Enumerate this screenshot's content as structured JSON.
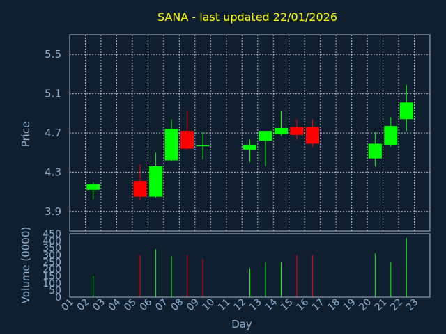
{
  "colors": {
    "background": "#0f1f30",
    "up": "#00ff00",
    "down": "#ff0000",
    "title": "#ffff00",
    "text": "#8fb0d0"
  },
  "chart_data": {
    "type": "candlestick",
    "title": "SANA - last updated 22/01/2026",
    "xlabel": "Day",
    "price_ylabel": "Price",
    "volume_ylabel": "Volume (0000)",
    "grid": true,
    "categories": [
      "01",
      "02",
      "03",
      "04",
      "05",
      "06",
      "07",
      "08",
      "09",
      "10",
      "11",
      "12",
      "13",
      "14",
      "15",
      "16",
      "17",
      "18",
      "19",
      "20",
      "21",
      "22",
      "23"
    ],
    "price_ylim": [
      3.7,
      5.7
    ],
    "price_ticks": [
      "3.9",
      "4.3",
      "4.7",
      "5.1",
      "5.5"
    ],
    "volume_ylim": [
      0,
      450
    ],
    "volume_ticks": [
      "0",
      "50",
      "100",
      "150",
      "200",
      "250",
      "300",
      "350",
      "400",
      "450"
    ],
    "candles": [
      {
        "day": "02",
        "open": 4.12,
        "high": 4.2,
        "low": 4.02,
        "close": 4.18
      },
      {
        "day": "05",
        "open": 4.21,
        "high": 4.38,
        "low": 4.01,
        "close": 4.05
      },
      {
        "day": "06",
        "open": 4.05,
        "high": 4.5,
        "low": 4.04,
        "close": 4.36
      },
      {
        "day": "07",
        "open": 4.42,
        "high": 4.84,
        "low": 4.41,
        "close": 4.74
      },
      {
        "day": "08",
        "open": 4.72,
        "high": 4.92,
        "low": 4.53,
        "close": 4.54
      },
      {
        "day": "09",
        "open": 4.57,
        "high": 4.71,
        "low": 4.43,
        "close": 4.57
      },
      {
        "day": "12",
        "open": 4.53,
        "high": 4.63,
        "low": 4.4,
        "close": 4.58
      },
      {
        "day": "13",
        "open": 4.62,
        "high": 4.72,
        "low": 4.36,
        "close": 4.72
      },
      {
        "day": "14",
        "open": 4.69,
        "high": 4.92,
        "low": 4.67,
        "close": 4.75
      },
      {
        "day": "15",
        "open": 4.76,
        "high": 4.84,
        "low": 4.63,
        "close": 4.68
      },
      {
        "day": "16",
        "open": 4.76,
        "high": 4.84,
        "low": 4.56,
        "close": 4.59
      },
      {
        "day": "20",
        "open": 4.44,
        "high": 4.71,
        "low": 4.36,
        "close": 4.59
      },
      {
        "day": "21",
        "open": 4.58,
        "high": 4.86,
        "low": 4.56,
        "close": 4.77
      },
      {
        "day": "22",
        "open": 4.84,
        "high": 5.19,
        "low": 4.72,
        "close": 5.01
      }
    ],
    "volume": [
      {
        "day": "02",
        "value": 150,
        "dir": "up"
      },
      {
        "day": "05",
        "value": 300,
        "dir": "down"
      },
      {
        "day": "06",
        "value": 340,
        "dir": "up"
      },
      {
        "day": "07",
        "value": 290,
        "dir": "up"
      },
      {
        "day": "08",
        "value": 300,
        "dir": "down"
      },
      {
        "day": "09",
        "value": 270,
        "dir": "down"
      },
      {
        "day": "12",
        "value": 205,
        "dir": "up"
      },
      {
        "day": "13",
        "value": 250,
        "dir": "up"
      },
      {
        "day": "14",
        "value": 250,
        "dir": "up"
      },
      {
        "day": "15",
        "value": 300,
        "dir": "down"
      },
      {
        "day": "16",
        "value": 300,
        "dir": "down"
      },
      {
        "day": "20",
        "value": 310,
        "dir": "up"
      },
      {
        "day": "21",
        "value": 250,
        "dir": "up"
      },
      {
        "day": "22",
        "value": 420,
        "dir": "up"
      }
    ]
  }
}
